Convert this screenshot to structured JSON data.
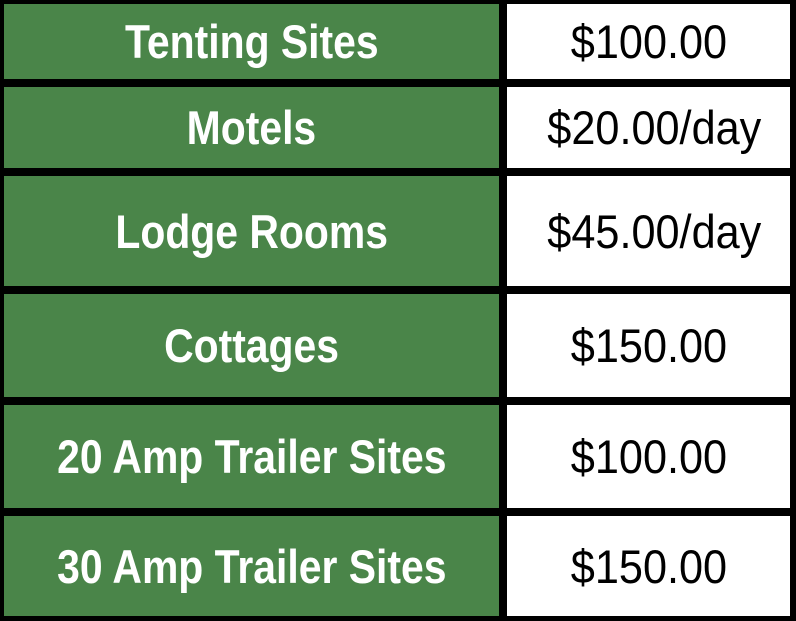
{
  "colors": {
    "label_bg": "#4a8549",
    "label_text": "#ffffff",
    "price_bg": "#ffffff",
    "border": "#000000"
  },
  "rows": [
    {
      "label": "Tenting Sites",
      "price": "$100.00"
    },
    {
      "label": "Motels",
      "price": "$20.00/day"
    },
    {
      "label": "Lodge Rooms",
      "price": "$45.00/day"
    },
    {
      "label": "Cottages",
      "price": "$150.00"
    },
    {
      "label": "20 Amp Trailer Sites",
      "price": "$100.00"
    },
    {
      "label": "30 Amp Trailer Sites",
      "price": "$150.00"
    }
  ]
}
